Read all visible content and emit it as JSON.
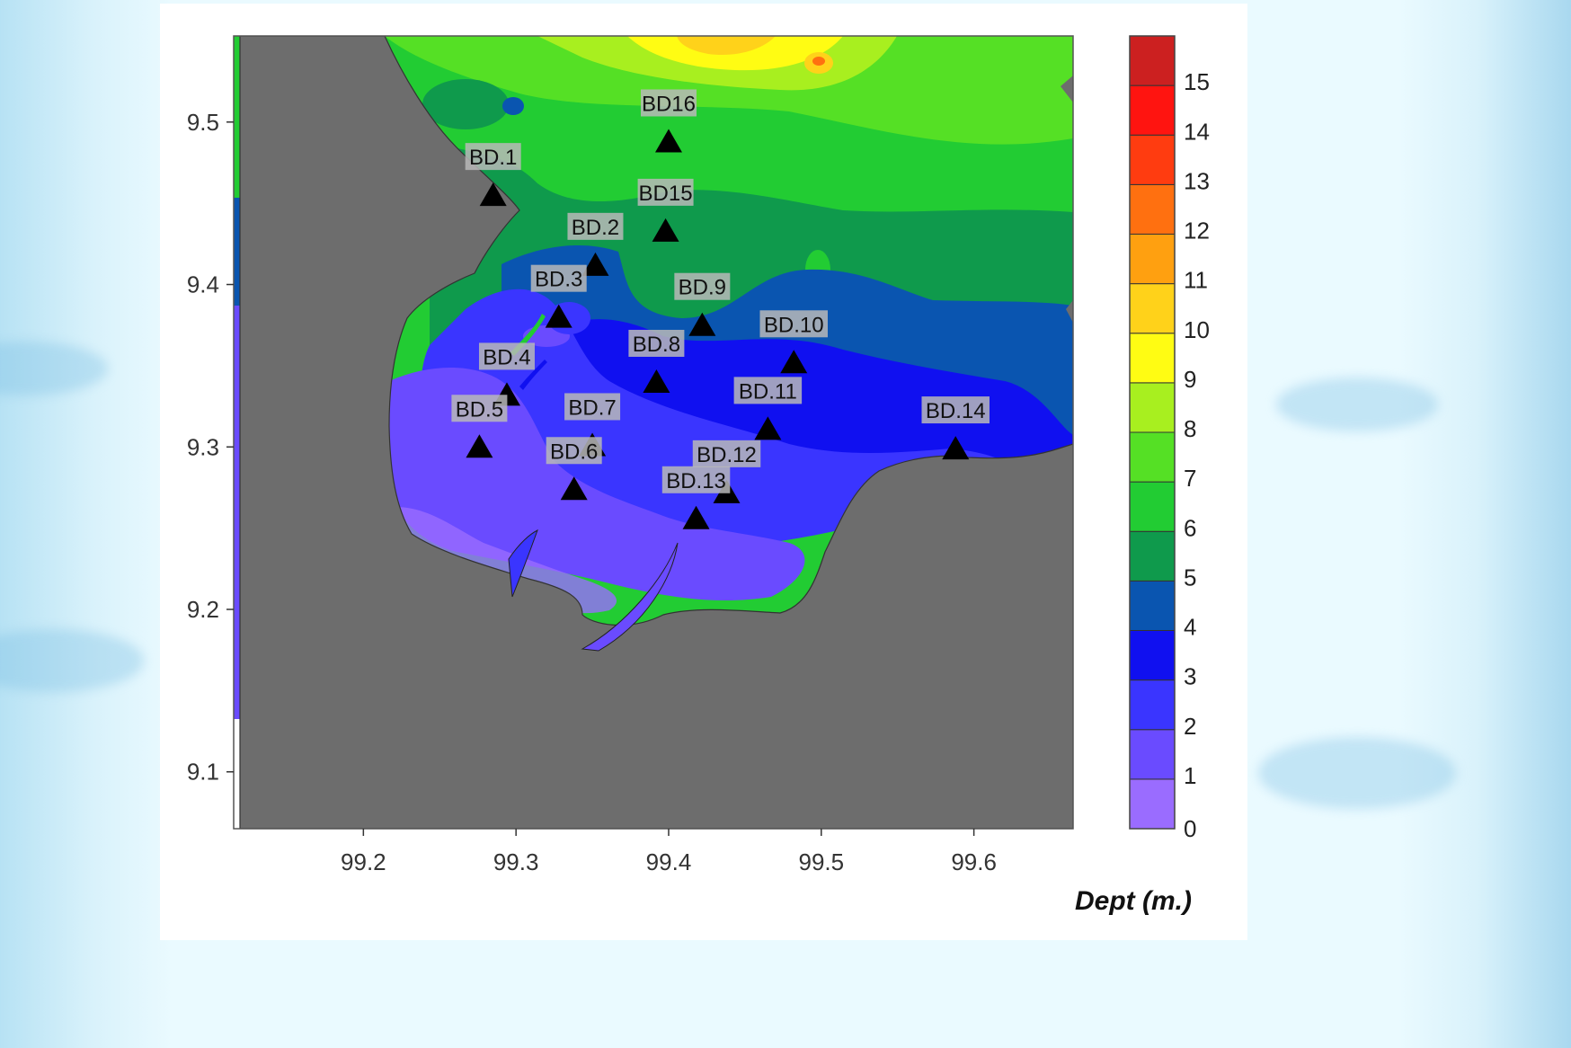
{
  "map": {
    "x_ticks": [
      "99.2",
      "99.3",
      "99.4",
      "99.5",
      "99.6"
    ],
    "y_ticks": [
      "9.5",
      "9.4",
      "9.3",
      "9.2",
      "9.1"
    ],
    "colorbar": {
      "levels": [
        "0",
        "1",
        "2",
        "3",
        "4",
        "5",
        "6",
        "7",
        "8",
        "9",
        "10",
        "11",
        "12",
        "13",
        "14",
        "15"
      ],
      "colors": [
        "#9a6cff",
        "#6a4bff",
        "#3a35ff",
        "#1010f0",
        "#0a55b0",
        "#0f9a4c",
        "#22cc33",
        "#55e025",
        "#a8ef1f",
        "#fffc13",
        "#ffd21a",
        "#ffa010",
        "#ff7010",
        "#ff3c10",
        "#ff1410",
        "#cc2020"
      ],
      "caption": "Dept (m.)"
    },
    "stations": [
      {
        "name": "BD16",
        "lon": 99.4,
        "lat": 9.488
      },
      {
        "name": "BD.1",
        "lon": 99.285,
        "lat": 9.455
      },
      {
        "name": "BD15",
        "lon": 99.398,
        "lat": 9.433
      },
      {
        "name": "BD.2",
        "lon": 99.352,
        "lat": 9.412
      },
      {
        "name": "BD.3",
        "lon": 99.328,
        "lat": 9.38
      },
      {
        "name": "BD.9",
        "lon": 99.422,
        "lat": 9.375
      },
      {
        "name": "BD.10",
        "lon": 99.482,
        "lat": 9.352
      },
      {
        "name": "BD.4",
        "lon": 99.294,
        "lat": 9.332
      },
      {
        "name": "BD.8",
        "lon": 99.392,
        "lat": 9.34
      },
      {
        "name": "BD.11",
        "lon": 99.465,
        "lat": 9.311
      },
      {
        "name": "BD.5",
        "lon": 99.276,
        "lat": 9.3
      },
      {
        "name": "BD.7",
        "lon": 99.35,
        "lat": 9.301
      },
      {
        "name": "BD.14",
        "lon": 99.588,
        "lat": 9.299
      },
      {
        "name": "BD.6",
        "lon": 99.338,
        "lat": 9.274
      },
      {
        "name": "BD.12",
        "lon": 99.438,
        "lat": 9.272
      },
      {
        "name": "BD.13",
        "lon": 99.418,
        "lat": 9.256
      }
    ]
  }
}
